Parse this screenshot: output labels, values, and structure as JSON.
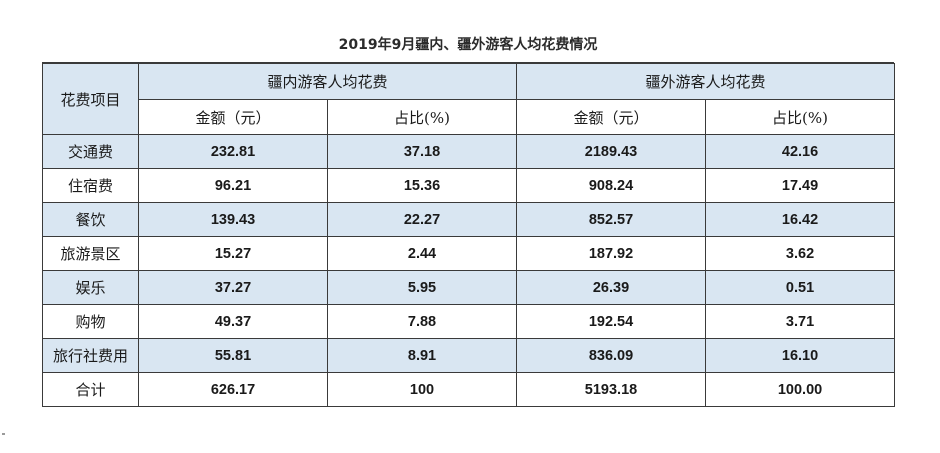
{
  "table": {
    "title": "2019年9月疆内、疆外游客人均花费情况",
    "item_header": "花费项目",
    "groups": [
      "疆内游客人均花费",
      "疆外游客人均花费"
    ],
    "subheaders": [
      "金额（元）",
      "占比(%)",
      "金额（元）",
      "占比(%)"
    ],
    "rows": [
      {
        "label": "交通费",
        "values": [
          "232.81",
          "37.18",
          "2189.43",
          "42.16"
        ]
      },
      {
        "label": "住宿费",
        "values": [
          "96.21",
          "15.36",
          "908.24",
          "17.49"
        ]
      },
      {
        "label": "餐饮",
        "values": [
          "139.43",
          "22.27",
          "852.57",
          "16.42"
        ]
      },
      {
        "label": "旅游景区",
        "values": [
          "15.27",
          "2.44",
          "187.92",
          "3.62"
        ]
      },
      {
        "label": "娱乐",
        "values": [
          "37.27",
          "5.95",
          "26.39",
          "0.51"
        ]
      },
      {
        "label": "购物",
        "values": [
          "49.37",
          "7.88",
          "192.54",
          "3.71"
        ]
      },
      {
        "label": "旅行社费用",
        "values": [
          "55.81",
          "8.91",
          "836.09",
          "16.10"
        ]
      },
      {
        "label": "合计",
        "values": [
          "626.17",
          "100",
          "5193.18",
          "100.00"
        ]
      }
    ],
    "colors": {
      "band": "#d9e6f2",
      "border": "#3a3a3a"
    }
  }
}
